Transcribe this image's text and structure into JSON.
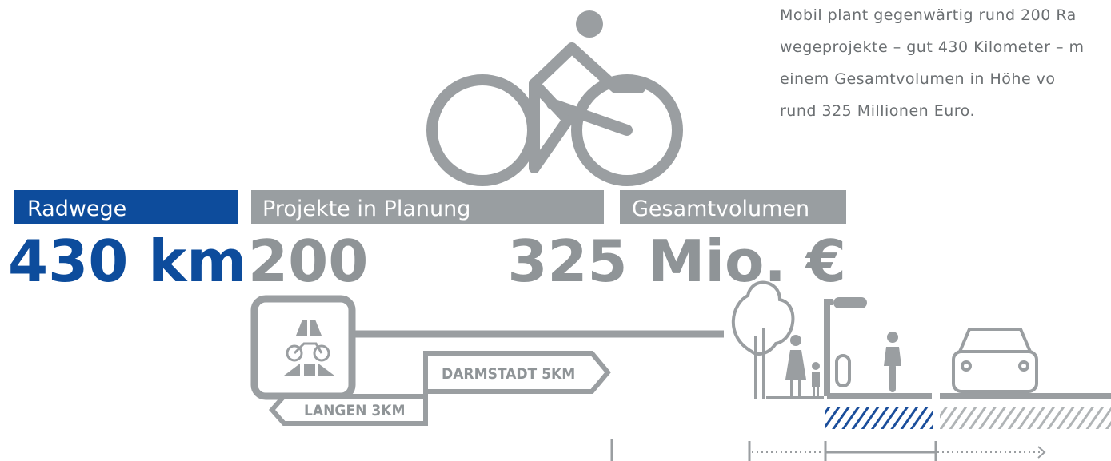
{
  "paragraph": {
    "lines": [
      "Mobil plant gegenwärtig rund 200 Ra",
      "wegeprojekte – gut 430 Kilometer – m",
      "einem Gesamtvolumen in Höhe vo",
      "rund 325 Millionen Euro."
    ]
  },
  "stats": [
    {
      "label": "Radwege",
      "value": "430 km"
    },
    {
      "label": "Projekte in Planung",
      "value": "200"
    },
    {
      "label": "Gesamtvolumen",
      "value": "325 Mio. €"
    }
  ],
  "signs": [
    "DARMSTADT 5KM",
    "LANGEN 3KM"
  ]
}
